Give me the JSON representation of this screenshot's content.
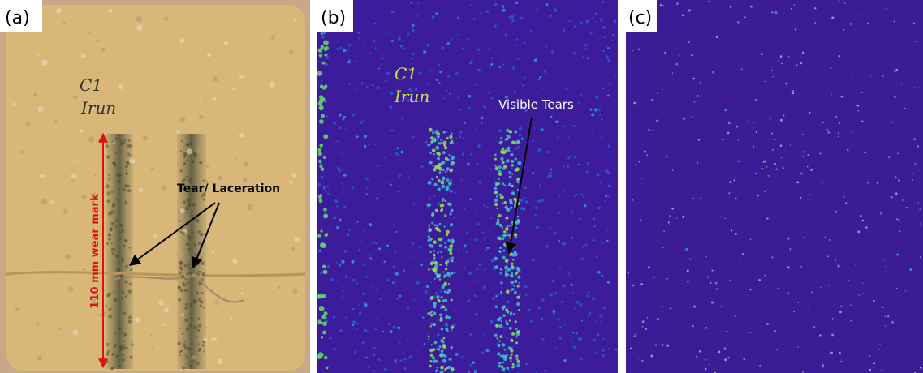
{
  "panels": [
    {
      "label": "(a)",
      "handwriting": [
        "C1",
        "Irun"
      ],
      "annotations": [
        "110 mm wear mark",
        "Tear/ Laceration"
      ]
    },
    {
      "label": "(b)",
      "handwriting": [
        "C1",
        "Irun"
      ],
      "annotations": [
        "Visible Tears"
      ]
    },
    {
      "label": "(c)"
    }
  ]
}
